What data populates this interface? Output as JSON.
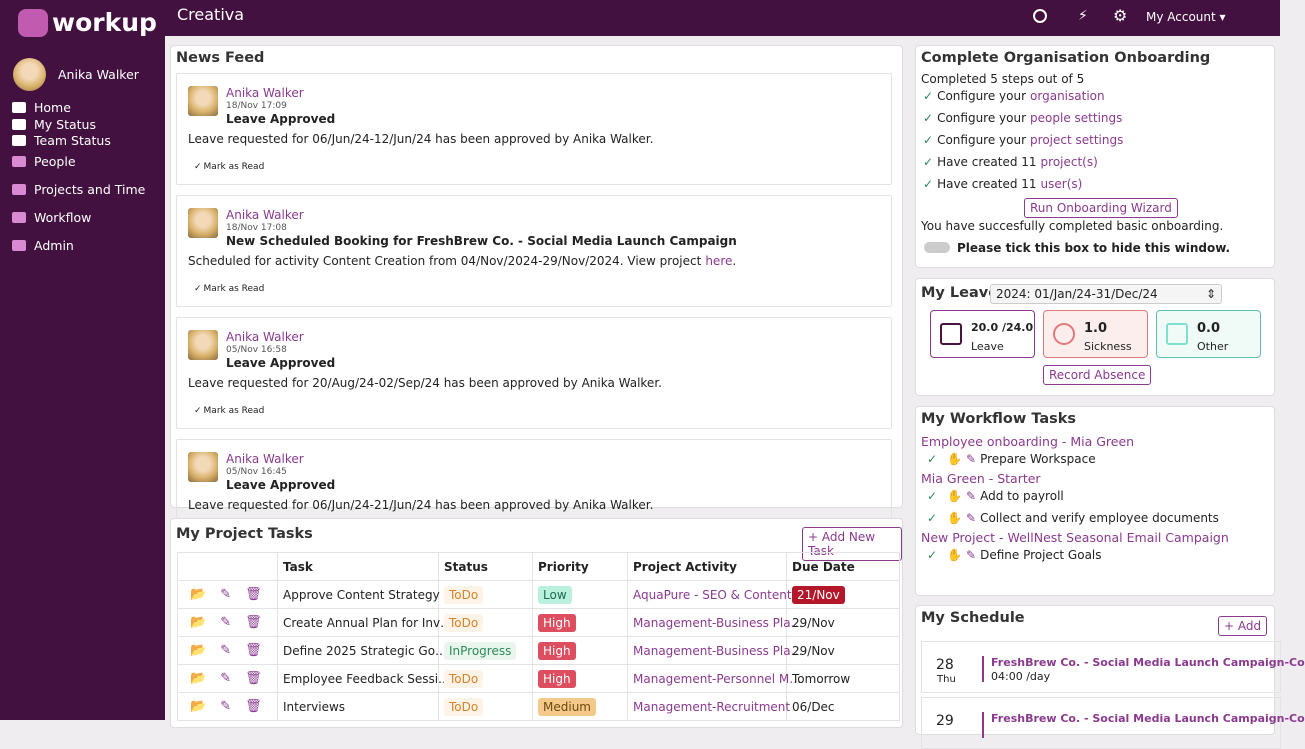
{
  "brand": "workup",
  "org": "Creativa",
  "account": "My Account",
  "user": "Anika Walker",
  "nav": [
    "Home",
    "My Status",
    "Team Status",
    "People",
    "Projects and Time",
    "Workflow",
    "Admin"
  ],
  "news_feed": {
    "title": "News Feed",
    "items": [
      {
        "author": "Anika Walker",
        "time": "18/Nov 17:09",
        "heading": "Leave Approved",
        "body": "Leave requested for 06/Jun/24-12/Jun/24 has been approved by Anika Walker.",
        "action": "Mark as Read"
      },
      {
        "author": "Anika Walker",
        "time": "18/Nov 17:08",
        "heading": "New Scheduled Booking for FreshBrew Co. - Social Media Launch Campaign",
        "body": "Scheduled for activity Content Creation from 04/Nov/2024-29/Nov/2024. View project",
        "link": "here",
        "end": ".",
        "action": "Mark as Read"
      },
      {
        "author": "Anika Walker",
        "time": "05/Nov 16:58",
        "heading": "Leave Approved",
        "body": "Leave requested for 20/Aug/24-02/Sep/24 has been approved by Anika Walker.",
        "action": "Mark as Read"
      },
      {
        "author": "Anika Walker",
        "time": "05/Nov 16:45",
        "heading": "Leave Approved",
        "body": "Leave requested for 06/Jun/24-21/Jun/24 has been approved by Anika Walker."
      }
    ]
  },
  "project_tasks": {
    "title": "My Project Tasks",
    "add": "+ Add New Task",
    "columns": [
      "Task",
      "Status",
      "Priority",
      "Project Activity",
      "Due Date"
    ],
    "rows": [
      [
        "Approve Content Strategy",
        "ToDo",
        "Low",
        "AquaPure - SEO & Content…",
        "21/Nov"
      ],
      [
        "Create Annual Plan for Inv…",
        "ToDo",
        "High",
        "Management-Business Pla…",
        "29/Nov"
      ],
      [
        "Define 2025 Strategic Go…",
        "InProgress",
        "High",
        "Management-Business Pla…",
        "29/Nov"
      ],
      [
        "Employee Feedback Sessi…",
        "ToDo",
        "High",
        "Management-Personnel M…",
        "Tomorrow"
      ],
      [
        "Interviews",
        "ToDo",
        "Medium",
        "Management-Recruitment",
        "06/Dec"
      ]
    ]
  },
  "onboarding": {
    "title": "Complete Organisation Onboarding",
    "status": "Completed 5 steps out of 5",
    "steps": [
      {
        "text": "Configure your",
        "link": "organisation"
      },
      {
        "text": "Configure your",
        "link": "people settings"
      },
      {
        "text": "Configure your",
        "link": "project settings"
      },
      {
        "text": "Have created 11",
        "link": "project(s)"
      },
      {
        "text": "Have created 11",
        "link": "user(s)"
      }
    ],
    "button": "Run Onboarding Wizard",
    "done": "You have succesfully completed basic onboarding.",
    "hide": "Please tick this box to hide this window."
  },
  "leave": {
    "title": "My Leave",
    "period": "2024: 01/Jan/24-31/Dec/24",
    "cards": [
      {
        "value": "20.0 /24.0",
        "label": "Leave"
      },
      {
        "value": "1.0",
        "label": "Sickness"
      },
      {
        "value": "0.0",
        "label": "Other"
      }
    ],
    "button": "Record Absence"
  },
  "workflow": {
    "title": "My Workflow Tasks",
    "groups": [
      {
        "name": "Employee onboarding - Mia Green",
        "tasks": [
          "Prepare Workspace"
        ]
      },
      {
        "name": "Mia Green - Starter",
        "tasks": [
          "Add to payroll",
          "Collect and verify employee documents"
        ]
      },
      {
        "name": "New Project - WellNest Seasonal Email Campaign",
        "tasks": [
          "Define Project Goals"
        ]
      }
    ]
  },
  "schedule": {
    "title": "My Schedule",
    "add": "+ Add",
    "items": [
      {
        "day": "28",
        "dow": "Thu",
        "title": "FreshBrew Co. - Social Media Launch Campaign-Co",
        "detail": "04:00 /day"
      },
      {
        "day": "29",
        "title": "FreshBrew Co. - Social Media Launch Campaign-Co"
      }
    ]
  }
}
